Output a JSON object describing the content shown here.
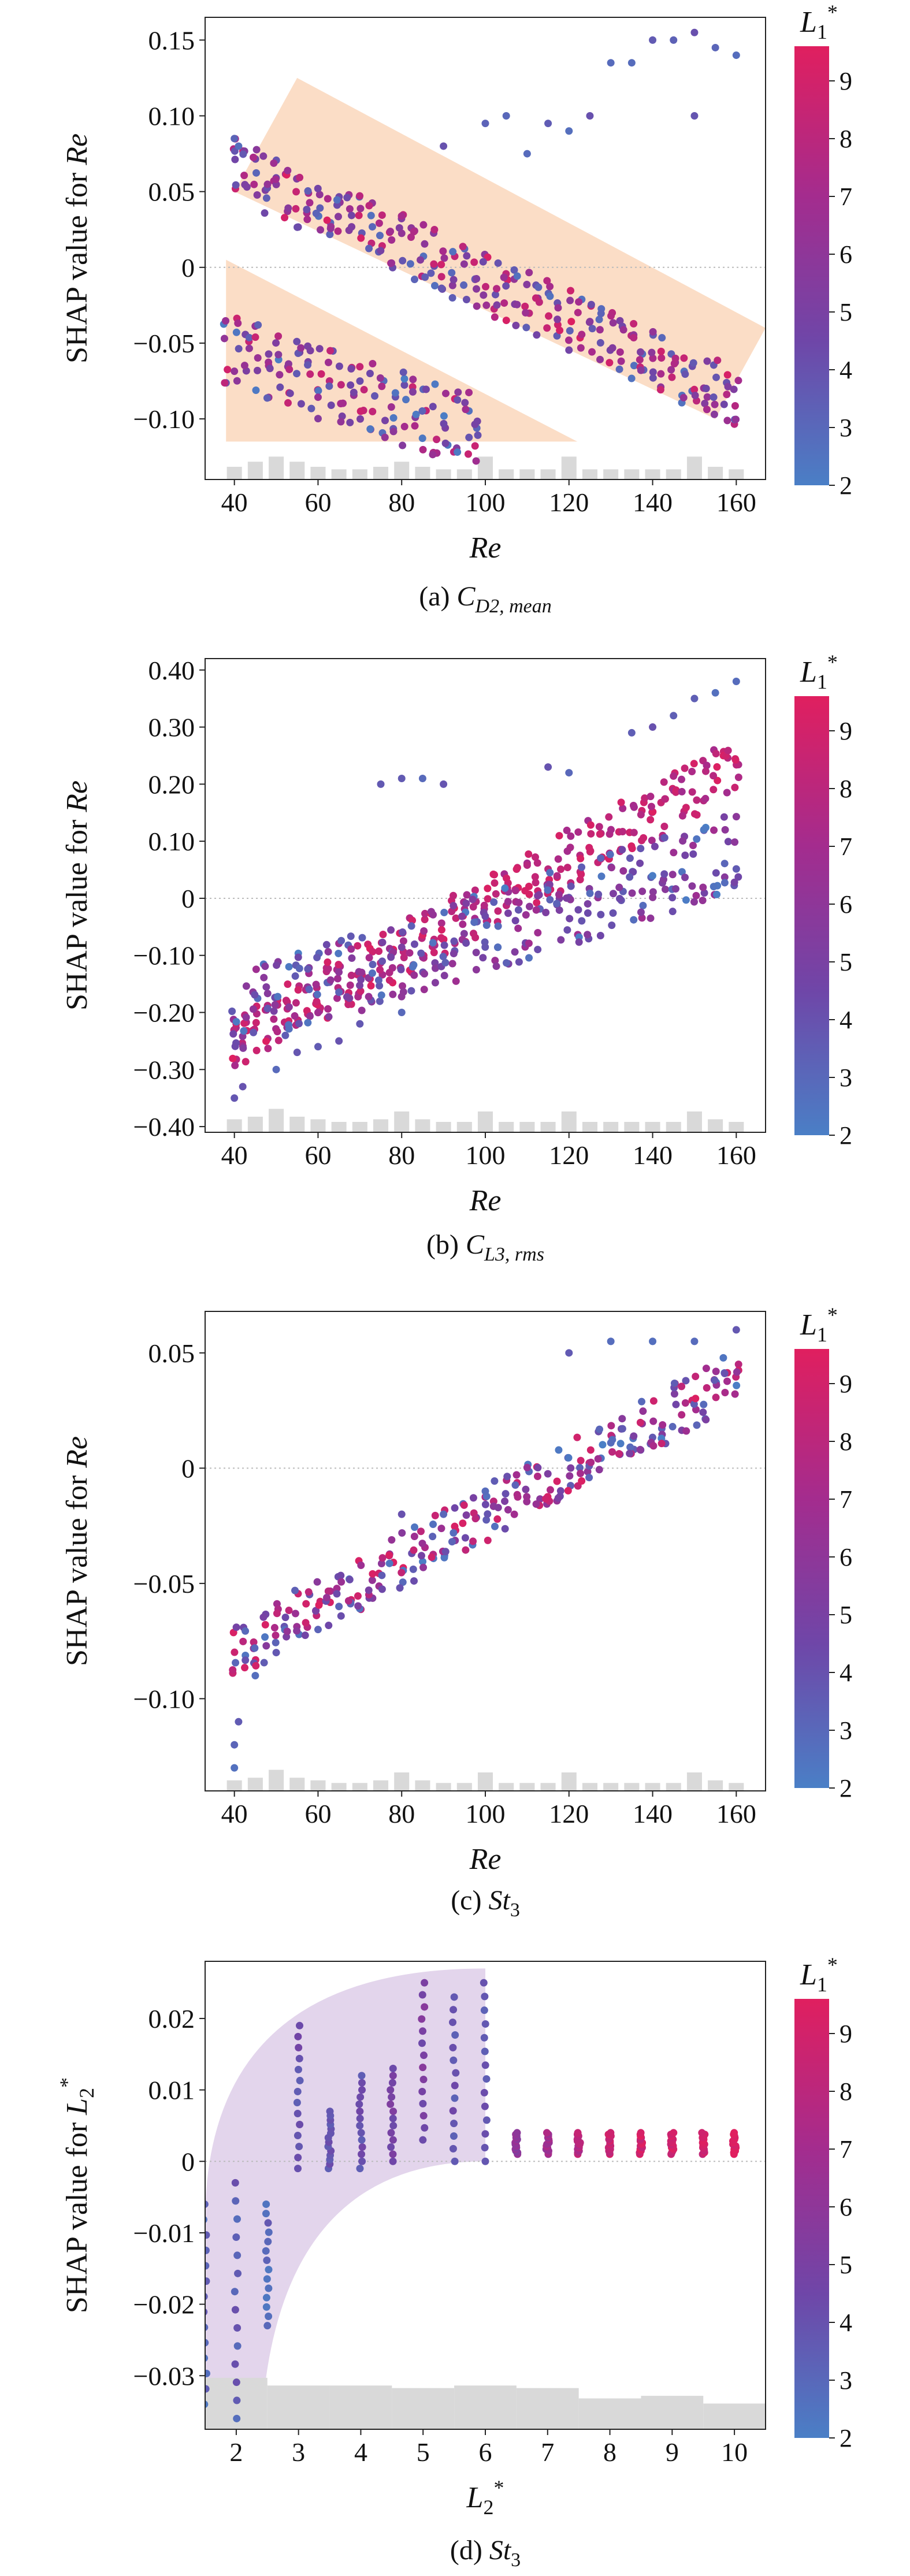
{
  "captions": [
    {
      "prefix": "(a) ",
      "sym": "C",
      "sub": "D2, mean"
    },
    {
      "prefix": "(b) ",
      "sym": "C",
      "sub": "L3, rms"
    },
    {
      "prefix": "(c) ",
      "sym": "St",
      "sub": "3"
    },
    {
      "prefix": "(d) ",
      "sym": "St",
      "sub": "3"
    }
  ],
  "colorbar": {
    "label": "L",
    "label_sub": "1",
    "label_sup": "*",
    "ticks": [
      2,
      3,
      4,
      5,
      6,
      7,
      8,
      9
    ],
    "range": [
      2,
      9.6
    ],
    "colors": [
      "#4a7fc6",
      "#6f46a8",
      "#a42c8e",
      "#e01f5f"
    ]
  },
  "chart_data": [
    {
      "type": "scatter",
      "xlabel": "Re",
      "ylabel": "SHAP value for Re",
      "xlim": [
        33,
        167
      ],
      "ylim": [
        -0.14,
        0.165
      ],
      "xticks": [
        40,
        60,
        80,
        100,
        120,
        140,
        160
      ],
      "yticks": [
        0.15,
        0.1,
        0.05,
        0,
        -0.05,
        -0.1
      ],
      "ytick_labels": [
        "0.15",
        "0.10",
        "0.05",
        "0",
        "−0.05",
        "−0.10"
      ],
      "zero_line": true,
      "colorbar_var": "L1*",
      "trends": [
        {
          "x_start": 40,
          "x_end": 160,
          "y_start": 0.065,
          "y_end": -0.085,
          "spread": 0.02,
          "color_low": 2.5,
          "color_high": 9.5
        },
        {
          "x_start": 38,
          "x_end": 100,
          "y_start": -0.055,
          "y_end": -0.11,
          "spread": 0.025,
          "color_low": 2,
          "color_high": 9
        }
      ],
      "outliers": [
        [
          40,
          0.085
        ],
        [
          41,
          0.08
        ],
        [
          100,
          0.095
        ],
        [
          105,
          0.1
        ],
        [
          115,
          0.095
        ],
        [
          125,
          0.1
        ],
        [
          130,
          0.135
        ],
        [
          135,
          0.135
        ],
        [
          140,
          0.15
        ],
        [
          145,
          0.15
        ],
        [
          150,
          0.155
        ],
        [
          155,
          0.145
        ],
        [
          160,
          0.14
        ],
        [
          150,
          0.1
        ],
        [
          120,
          0.09
        ],
        [
          110,
          0.075
        ],
        [
          90,
          0.08
        ]
      ],
      "highlight_regions": [
        {
          "color": "#f9cfae",
          "points": [
            [
              40,
              0.05
            ],
            [
              55,
              0.125
            ],
            [
              167,
              -0.04
            ],
            [
              155,
              -0.1
            ],
            [
              40,
              0.05
            ]
          ]
        },
        {
          "color": "#f9cfae",
          "points": [
            [
              38,
              0.005
            ],
            [
              38,
              -0.115
            ],
            [
              122,
              -0.115
            ],
            [
              38,
              0.005
            ]
          ]
        }
      ],
      "histogram": {
        "bins_x": [
          40,
          45,
          50,
          55,
          60,
          65,
          70,
          75,
          80,
          85,
          90,
          95,
          100,
          105,
          110,
          115,
          120,
          125,
          130,
          135,
          140,
          145,
          150,
          155,
          160
        ],
        "heights": [
          0.5,
          0.7,
          0.9,
          0.7,
          0.5,
          0.4,
          0.4,
          0.5,
          0.7,
          0.5,
          0.4,
          0.4,
          0.9,
          0.4,
          0.4,
          0.4,
          0.9,
          0.4,
          0.4,
          0.4,
          0.4,
          0.4,
          0.9,
          0.5,
          0.4
        ]
      }
    },
    {
      "type": "scatter",
      "xlabel": "Re",
      "ylabel": "SHAP value for Re",
      "xlim": [
        33,
        167
      ],
      "ylim": [
        -0.41,
        0.42
      ],
      "xticks": [
        40,
        60,
        80,
        100,
        120,
        140,
        160
      ],
      "yticks": [
        0.4,
        0.3,
        0.2,
        0.1,
        0,
        -0.1,
        -0.2,
        -0.3,
        -0.4
      ],
      "ytick_labels": [
        "0.40",
        "0.30",
        "0.20",
        "0.10",
        "0",
        "−0.10",
        "−0.20",
        "−0.30",
        "−0.40"
      ],
      "zero_line": true,
      "colorbar_var": "L1*",
      "trends": [
        {
          "x_start": 40,
          "x_end": 160,
          "y_start": -0.25,
          "y_end": 0.23,
          "spread": 0.05,
          "color_low": 7,
          "color_high": 9.5
        },
        {
          "x_start": 40,
          "x_end": 160,
          "y_start": -0.2,
          "y_end": 0.08,
          "spread": 0.07,
          "color_low": 2,
          "color_high": 7
        }
      ],
      "outliers": [
        [
          40,
          -0.35
        ],
        [
          42,
          -0.33
        ],
        [
          50,
          -0.3
        ],
        [
          55,
          -0.27
        ],
        [
          60,
          -0.26
        ],
        [
          65,
          -0.25
        ],
        [
          70,
          -0.22
        ],
        [
          80,
          -0.2
        ],
        [
          75,
          0.2
        ],
        [
          80,
          0.21
        ],
        [
          85,
          0.21
        ],
        [
          90,
          0.2
        ],
        [
          115,
          0.23
        ],
        [
          120,
          0.22
        ],
        [
          140,
          0.3
        ],
        [
          150,
          0.35
        ],
        [
          155,
          0.36
        ],
        [
          160,
          0.38
        ],
        [
          145,
          0.32
        ],
        [
          135,
          0.29
        ]
      ],
      "highlight_regions": [],
      "histogram": {
        "bins_x": [
          40,
          45,
          50,
          55,
          60,
          65,
          70,
          75,
          80,
          85,
          90,
          95,
          100,
          105,
          110,
          115,
          120,
          125,
          130,
          135,
          140,
          145,
          150,
          155,
          160
        ],
        "heights": [
          0.5,
          0.6,
          0.9,
          0.6,
          0.5,
          0.4,
          0.4,
          0.5,
          0.8,
          0.5,
          0.4,
          0.4,
          0.8,
          0.4,
          0.4,
          0.4,
          0.8,
          0.4,
          0.4,
          0.4,
          0.4,
          0.4,
          0.8,
          0.5,
          0.4
        ]
      }
    },
    {
      "type": "scatter",
      "xlabel": "Re",
      "ylabel": "SHAP value for Re",
      "xlim": [
        33,
        167
      ],
      "ylim": [
        -0.14,
        0.068
      ],
      "xticks": [
        40,
        60,
        80,
        100,
        120,
        140,
        160
      ],
      "yticks": [
        0.05,
        0,
        -0.05,
        -0.1
      ],
      "ytick_labels": [
        "0.05",
        "0",
        "−0.05",
        "−0.10"
      ],
      "zero_line": true,
      "colorbar_var": "L1*",
      "trends": [
        {
          "x_start": 40,
          "x_end": 160,
          "y_start": -0.08,
          "y_end": 0.04,
          "spread": 0.012,
          "color_low": 2,
          "color_high": 9.5
        }
      ],
      "outliers": [
        [
          40,
          -0.12
        ],
        [
          40,
          -0.13
        ],
        [
          41,
          -0.11
        ],
        [
          45,
          -0.09
        ],
        [
          50,
          -0.08
        ],
        [
          60,
          -0.07
        ],
        [
          65,
          -0.06
        ],
        [
          80,
          -0.02
        ],
        [
          90,
          -0.02
        ],
        [
          100,
          -0.01
        ],
        [
          120,
          0.05
        ],
        [
          130,
          0.055
        ],
        [
          140,
          0.055
        ],
        [
          150,
          0.055
        ],
        [
          160,
          0.06
        ]
      ],
      "highlight_regions": [],
      "histogram": {
        "bins_x": [
          40,
          45,
          50,
          55,
          60,
          65,
          70,
          75,
          80,
          85,
          90,
          95,
          100,
          105,
          110,
          115,
          120,
          125,
          130,
          135,
          140,
          145,
          150,
          155,
          160
        ],
        "heights": [
          0.4,
          0.5,
          0.8,
          0.5,
          0.4,
          0.3,
          0.3,
          0.4,
          0.7,
          0.4,
          0.3,
          0.3,
          0.7,
          0.3,
          0.3,
          0.3,
          0.7,
          0.3,
          0.3,
          0.3,
          0.3,
          0.3,
          0.7,
          0.4,
          0.3
        ]
      }
    },
    {
      "type": "scatter",
      "xlabel": "L2*",
      "ylabel": "SHAP value for L2*",
      "xlim": [
        1.5,
        10.5
      ],
      "ylim": [
        -0.0375,
        0.028
      ],
      "xticks": [
        2,
        3,
        4,
        5,
        6,
        7,
        8,
        9,
        10
      ],
      "yticks": [
        0.02,
        0.01,
        0,
        -0.01,
        -0.02,
        -0.03
      ],
      "ytick_labels": [
        "0.02",
        "0.01",
        "0",
        "−0.01",
        "−0.02",
        "−0.03"
      ],
      "zero_line": true,
      "colorbar_var": "L1*",
      "columns": [
        {
          "x": 1.5,
          "ymin": -0.034,
          "ymax": -0.006,
          "color": 3
        },
        {
          "x": 2.0,
          "ymin": -0.036,
          "ymax": -0.003,
          "color": 3.5
        },
        {
          "x": 2.5,
          "ymin": -0.023,
          "ymax": -0.006,
          "color": 3
        },
        {
          "x": 3.0,
          "ymin": -0.001,
          "ymax": 0.019,
          "color": 4
        },
        {
          "x": 3.5,
          "ymin": -0.001,
          "ymax": 0.007,
          "color": 4
        },
        {
          "x": 4.0,
          "ymin": -0.001,
          "ymax": 0.012,
          "color": 4
        },
        {
          "x": 4.5,
          "ymin": 0.0,
          "ymax": 0.013,
          "color": 5
        },
        {
          "x": 5.0,
          "ymin": 0.003,
          "ymax": 0.025,
          "color": 5
        },
        {
          "x": 5.5,
          "ymin": 0.0,
          "ymax": 0.023,
          "color": 4
        },
        {
          "x": 6.0,
          "ymin": 0.0,
          "ymax": 0.025,
          "color": 4
        },
        {
          "x": 6.5,
          "ymin": 0.001,
          "ymax": 0.004,
          "color": 6
        },
        {
          "x": 7.0,
          "ymin": 0.001,
          "ymax": 0.004,
          "color": 7
        },
        {
          "x": 7.5,
          "ymin": 0.001,
          "ymax": 0.004,
          "color": 8
        },
        {
          "x": 8.0,
          "ymin": 0.001,
          "ymax": 0.004,
          "color": 8.5
        },
        {
          "x": 8.5,
          "ymin": 0.001,
          "ymax": 0.004,
          "color": 9
        },
        {
          "x": 9.0,
          "ymin": 0.001,
          "ymax": 0.004,
          "color": 9
        },
        {
          "x": 9.5,
          "ymin": 0.001,
          "ymax": 0.004,
          "color": 9
        },
        {
          "x": 10.0,
          "ymin": 0.001,
          "ymax": 0.004,
          "color": 9.5
        }
      ],
      "highlight_regions": [
        {
          "color": "#d9c7e6",
          "shape": "arc",
          "x_left": 1.5,
          "x_right": 6.0,
          "y_top": 0.027,
          "y_bottom": -0.0375
        }
      ],
      "histogram": {
        "bins_x": [
          1.5,
          2.5,
          3.5,
          4.5,
          5.5,
          6.5,
          7.5,
          8.5,
          9.5,
          10.5
        ],
        "heights": [
          1.0,
          0.85,
          0.85,
          0.8,
          0.85,
          0.8,
          0.6,
          0.65,
          0.5,
          0.45
        ]
      }
    }
  ]
}
